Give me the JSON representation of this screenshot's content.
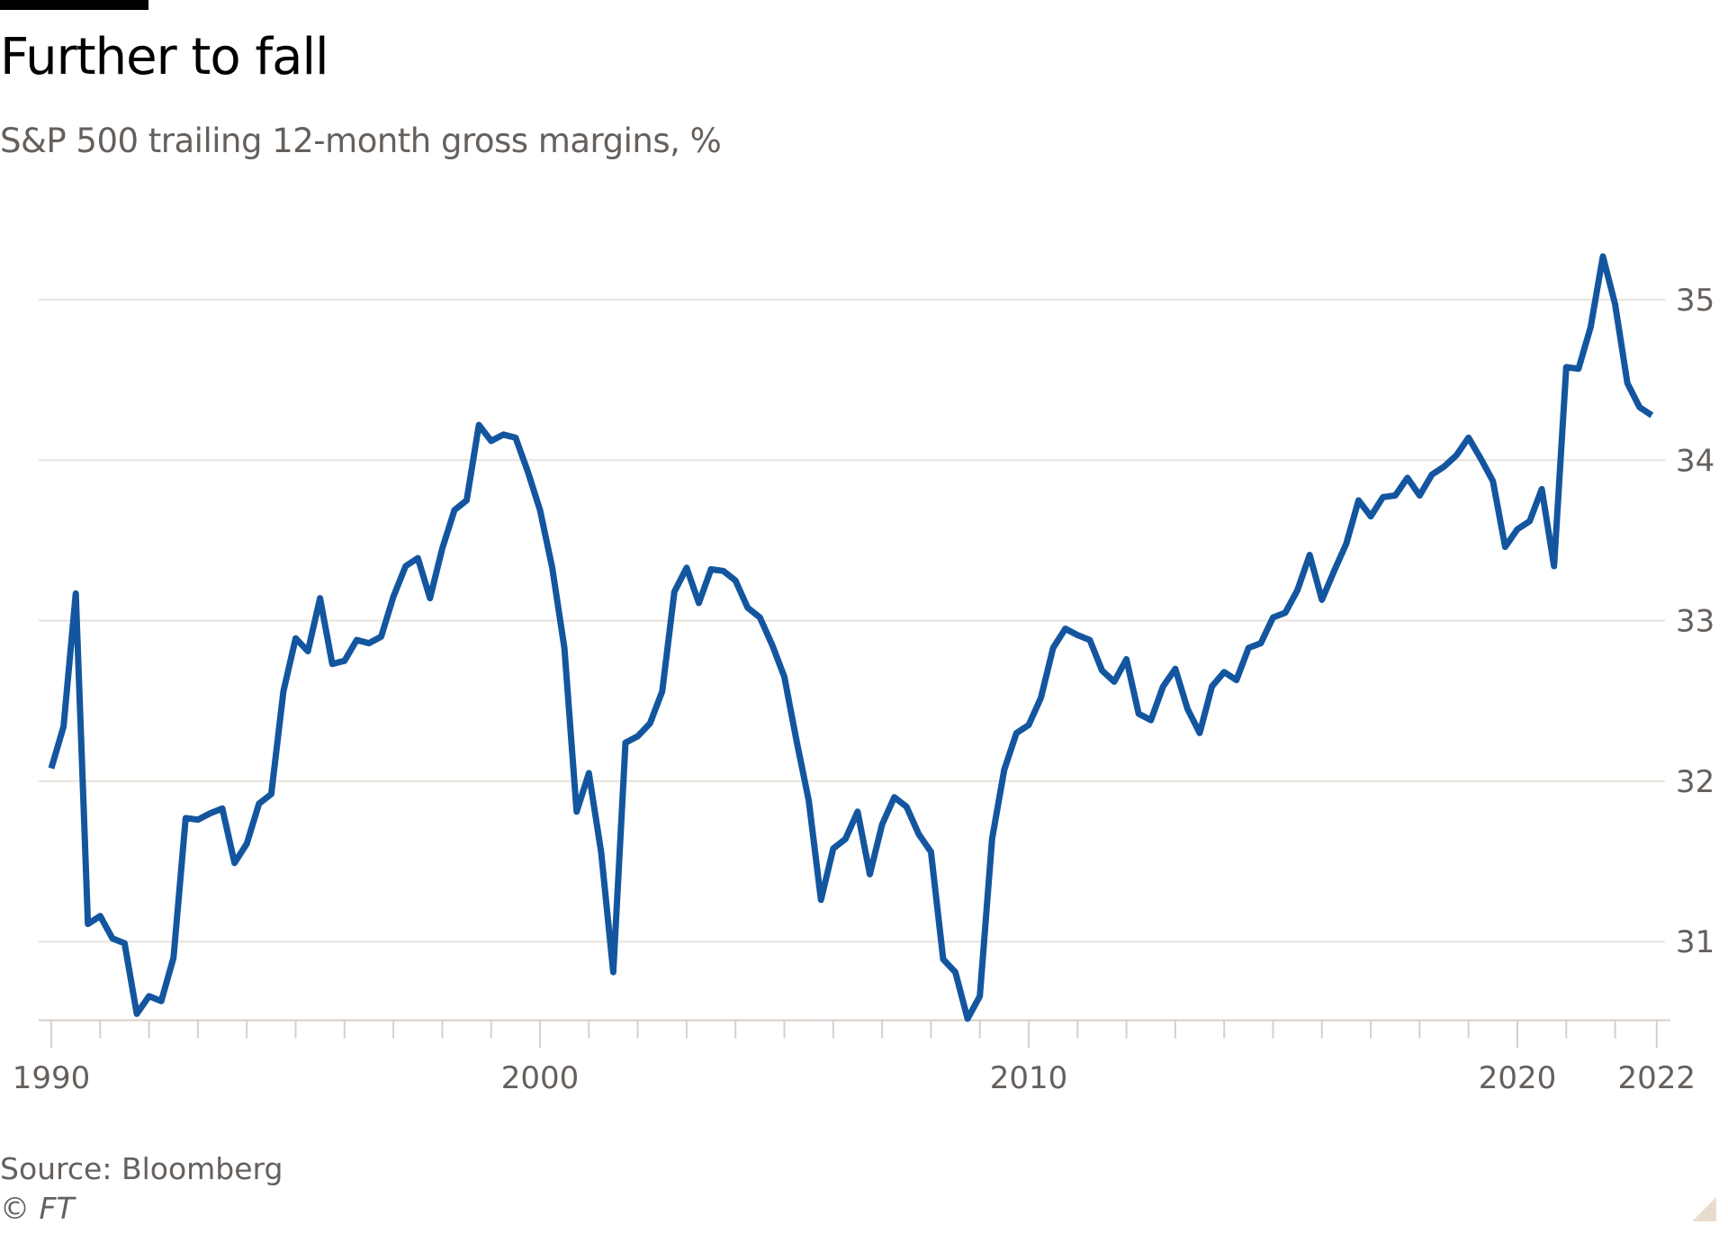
{
  "header": {
    "title": "Further to fall",
    "subtitle": "S&P 500 trailing 12-month gross margins, %"
  },
  "footer": {
    "source": "Source: Bloomberg",
    "copyright": "© FT"
  },
  "colors": {
    "line": "#13569f",
    "gridline": "#e9e2dc",
    "axis": "#d8cfc8",
    "tick_text": "#66605c",
    "title": "#000000",
    "corner": "#e9dccf"
  },
  "chart_data": {
    "type": "line",
    "title": "Further to fall",
    "subtitle": "S&P 500 trailing 12-month gross margins, %",
    "xlabel": "",
    "ylabel": "",
    "x_ticks": [
      {
        "value": 1990,
        "label": "1990"
      },
      {
        "value": 2000,
        "label": "2000"
      },
      {
        "value": 2010,
        "label": "2010"
      },
      {
        "value": 2020,
        "label": "2020"
      },
      {
        "value": 2022.85,
        "label": "2022"
      }
    ],
    "x_minor_ticks_every_year": true,
    "y_ticks": [
      31,
      32,
      33,
      34,
      35
    ],
    "y_axis_side": "right",
    "xlim": [
      1990,
      2022.85
    ],
    "ylim": [
      30.5,
      35.4
    ],
    "grid": "horizontal",
    "legend": "none",
    "source": "Bloomberg",
    "series": [
      {
        "name": "S&P 500 trailing 12-month gross margin (%)",
        "x": [
          1990.0,
          1990.25,
          1990.5,
          1990.75,
          1991.0,
          1991.25,
          1991.5,
          1991.75,
          1992.0,
          1992.25,
          1992.5,
          1992.75,
          1993.0,
          1993.25,
          1993.5,
          1993.75,
          1994.0,
          1994.25,
          1994.5,
          1994.75,
          1995.0,
          1995.25,
          1995.5,
          1995.75,
          1996.0,
          1996.25,
          1996.5,
          1996.75,
          1997.0,
          1997.25,
          1997.5,
          1997.75,
          1998.0,
          1998.25,
          1998.5,
          1998.75,
          1999.0,
          1999.25,
          1999.5,
          1999.75,
          2000.0,
          2000.25,
          2000.5,
          2000.75,
          2001.0,
          2001.25,
          2001.5,
          2001.75,
          2002.0,
          2002.25,
          2002.5,
          2002.75,
          2003.0,
          2003.25,
          2003.5,
          2003.75,
          2004.0,
          2004.25,
          2004.5,
          2004.75,
          2005.0,
          2005.25,
          2005.5,
          2005.75,
          2006.0,
          2006.25,
          2006.5,
          2006.75,
          2007.0,
          2007.25,
          2007.5,
          2007.75,
          2008.0,
          2008.25,
          2008.5,
          2008.75,
          2009.0,
          2009.25,
          2009.5,
          2009.75,
          2010.0,
          2010.25,
          2010.5,
          2010.75,
          2011.0,
          2011.25,
          2011.5,
          2011.75,
          2012.0,
          2012.25,
          2012.5,
          2012.75,
          2013.0,
          2013.25,
          2013.5,
          2013.75,
          2014.0,
          2014.25,
          2014.5,
          2014.75,
          2015.0,
          2015.25,
          2015.5,
          2015.75,
          2016.0,
          2016.25,
          2016.5,
          2016.75,
          2017.0,
          2017.25,
          2017.5,
          2017.75,
          2018.0,
          2018.25,
          2018.5,
          2018.75,
          2019.0,
          2019.25,
          2019.5,
          2019.75,
          2020.0,
          2020.25,
          2020.5,
          2020.75,
          2021.0,
          2021.25,
          2021.5,
          2021.75,
          2022.0,
          2022.25,
          2022.5,
          2022.75
        ],
        "values": [
          32.08,
          32.34,
          33.17,
          31.11,
          31.16,
          31.02,
          30.99,
          30.55,
          30.66,
          30.63,
          30.9,
          31.77,
          31.76,
          31.8,
          31.83,
          31.49,
          31.61,
          31.86,
          31.92,
          32.56,
          32.89,
          32.81,
          33.14,
          32.73,
          32.75,
          32.88,
          32.86,
          32.9,
          33.15,
          33.34,
          33.39,
          33.14,
          33.45,
          33.69,
          33.75,
          34.22,
          34.12,
          34.16,
          34.14,
          33.93,
          33.69,
          33.33,
          32.83,
          31.81,
          32.05,
          31.56,
          30.81,
          32.24,
          32.28,
          32.36,
          32.56,
          33.18,
          33.33,
          33.11,
          33.32,
          33.31,
          33.25,
          33.08,
          33.02,
          32.85,
          32.65,
          32.25,
          31.88,
          31.26,
          31.58,
          31.64,
          31.81,
          31.42,
          31.73,
          31.9,
          31.84,
          31.67,
          31.56,
          30.89,
          30.81,
          30.52,
          30.66,
          31.64,
          32.07,
          32.3,
          32.35,
          32.52,
          32.83,
          32.95,
          32.91,
          32.88,
          32.69,
          32.62,
          32.76,
          32.42,
          32.38,
          32.59,
          32.7,
          32.45,
          32.3,
          32.59,
          32.68,
          32.63,
          32.83,
          32.86,
          33.02,
          33.05,
          33.19,
          33.41,
          33.13,
          33.31,
          33.48,
          33.75,
          33.65,
          33.77,
          33.78,
          33.89,
          33.78,
          33.91,
          33.96,
          34.03,
          34.14,
          34.01,
          33.87,
          33.46,
          33.57,
          33.62,
          33.82,
          33.34,
          34.58,
          34.57,
          34.83,
          35.27,
          34.97,
          34.48,
          34.33,
          34.28
        ]
      }
    ]
  }
}
